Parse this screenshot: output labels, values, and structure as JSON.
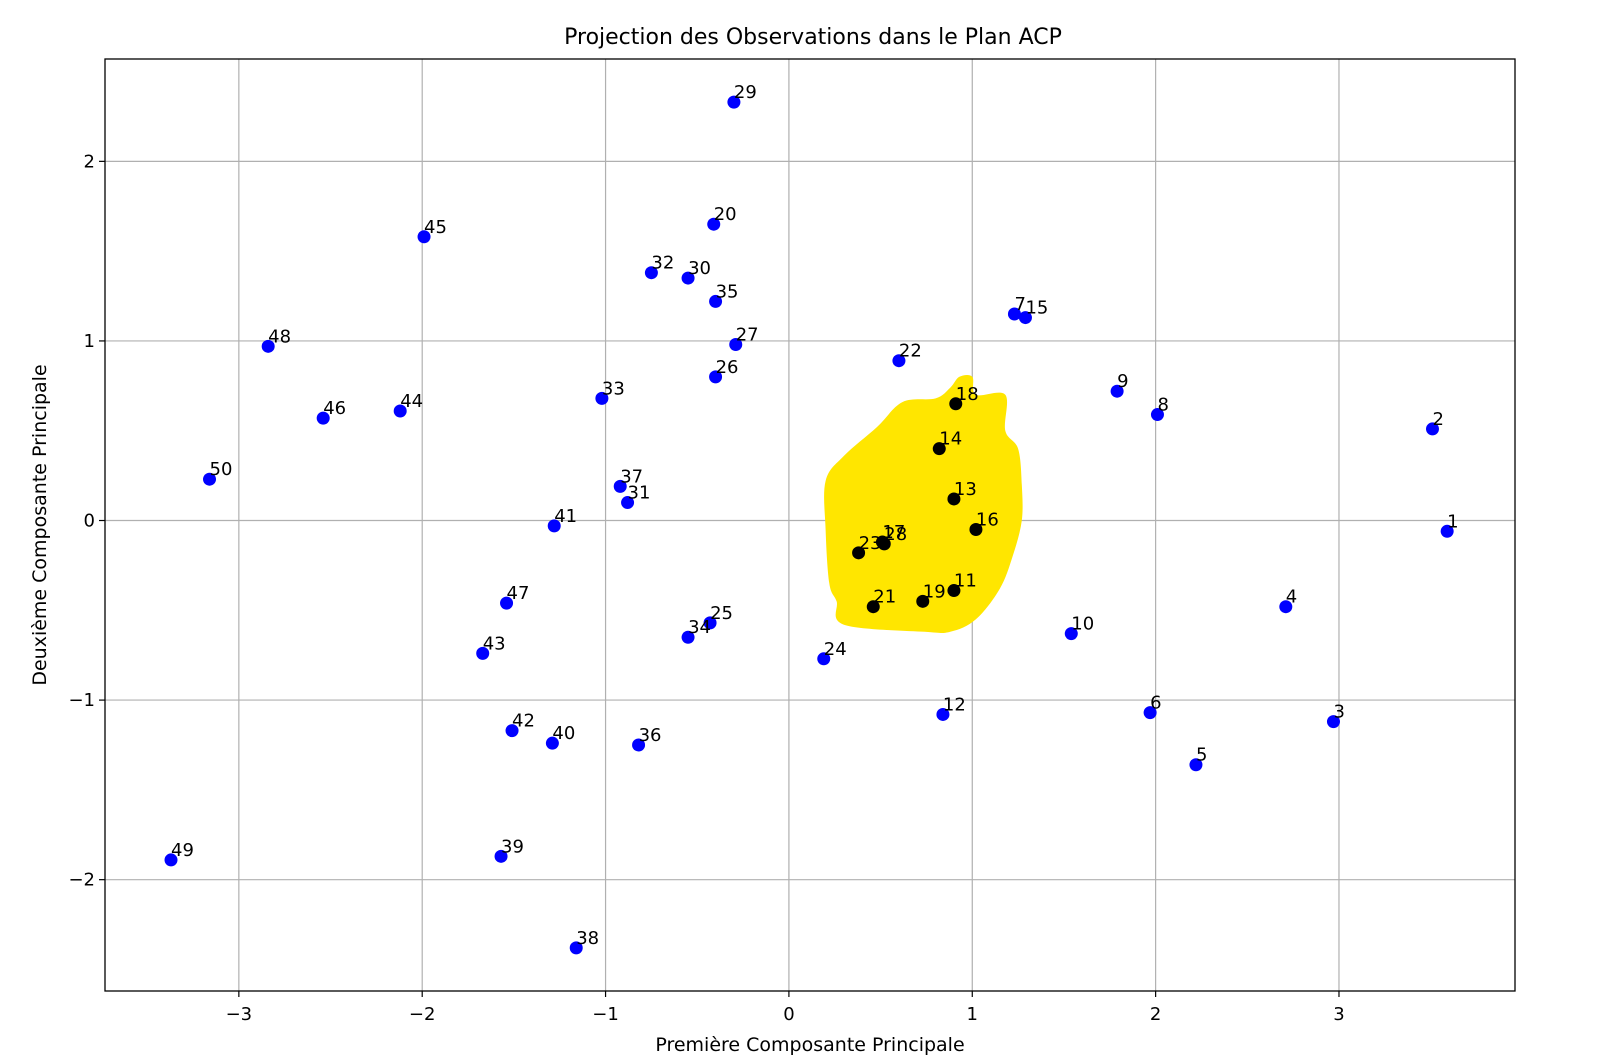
{
  "chart_data": {
    "type": "scatter",
    "title": "Projection des Observations dans le Plan ACP",
    "xlabel": "Première Composante Principale",
    "ylabel": "Deuxième Composante Principale",
    "xlim": [
      -3.73,
      3.96
    ],
    "ylim": [
      -2.62,
      2.57
    ],
    "xticks": [
      -3,
      -2,
      -1,
      0,
      1,
      2,
      3
    ],
    "yticks": [
      -2,
      -1,
      0,
      1,
      2
    ],
    "tick_labels_x": [
      "−3",
      "−2",
      "−1",
      "0",
      "1",
      "2",
      "3"
    ],
    "tick_labels_y": [
      "−2",
      "−1",
      "0",
      "1",
      "2"
    ],
    "grid": true,
    "colors": {
      "default": "#0000ff",
      "highlight": "#000000",
      "marker": "#ffe600"
    },
    "points": [
      {
        "label": "1",
        "x": 3.59,
        "y": -0.06,
        "color": "#0000ff"
      },
      {
        "label": "2",
        "x": 3.51,
        "y": 0.51,
        "color": "#0000ff"
      },
      {
        "label": "3",
        "x": 2.97,
        "y": -1.12,
        "color": "#0000ff"
      },
      {
        "label": "4",
        "x": 2.71,
        "y": -0.48,
        "color": "#0000ff"
      },
      {
        "label": "5",
        "x": 2.22,
        "y": -1.36,
        "color": "#0000ff"
      },
      {
        "label": "6",
        "x": 1.97,
        "y": -1.07,
        "color": "#0000ff"
      },
      {
        "label": "7",
        "x": 1.23,
        "y": 1.15,
        "color": "#0000ff"
      },
      {
        "label": "8",
        "x": 2.01,
        "y": 0.59,
        "color": "#0000ff"
      },
      {
        "label": "9",
        "x": 1.79,
        "y": 0.72,
        "color": "#0000ff"
      },
      {
        "label": "10",
        "x": 1.54,
        "y": -0.63,
        "color": "#0000ff"
      },
      {
        "label": "11",
        "x": 0.9,
        "y": -0.39,
        "color": "#000000"
      },
      {
        "label": "12",
        "x": 0.84,
        "y": -1.08,
        "color": "#0000ff"
      },
      {
        "label": "13",
        "x": 0.9,
        "y": 0.12,
        "color": "#000000"
      },
      {
        "label": "14",
        "x": 0.82,
        "y": 0.4,
        "color": "#000000"
      },
      {
        "label": "15",
        "x": 1.29,
        "y": 1.13,
        "color": "#0000ff"
      },
      {
        "label": "16",
        "x": 1.02,
        "y": -0.05,
        "color": "#000000"
      },
      {
        "label": "17",
        "x": 0.51,
        "y": -0.12,
        "color": "#000000"
      },
      {
        "label": "18",
        "x": 0.91,
        "y": 0.65,
        "color": "#000000"
      },
      {
        "label": "19",
        "x": 0.73,
        "y": -0.45,
        "color": "#000000"
      },
      {
        "label": "20",
        "x": -0.41,
        "y": 1.65,
        "color": "#0000ff"
      },
      {
        "label": "21",
        "x": 0.46,
        "y": -0.48,
        "color": "#000000"
      },
      {
        "label": "22",
        "x": 0.6,
        "y": 0.89,
        "color": "#0000ff"
      },
      {
        "label": "23",
        "x": 0.38,
        "y": -0.18,
        "color": "#000000"
      },
      {
        "label": "24",
        "x": 0.19,
        "y": -0.77,
        "color": "#0000ff"
      },
      {
        "label": "25",
        "x": -0.43,
        "y": -0.57,
        "color": "#0000ff"
      },
      {
        "label": "26",
        "x": -0.4,
        "y": 0.8,
        "color": "#0000ff"
      },
      {
        "label": "27",
        "x": -0.29,
        "y": 0.98,
        "color": "#0000ff"
      },
      {
        "label": "28",
        "x": 0.52,
        "y": -0.13,
        "color": "#000000"
      },
      {
        "label": "29",
        "x": -0.3,
        "y": 2.33,
        "color": "#0000ff"
      },
      {
        "label": "30",
        "x": -0.55,
        "y": 1.35,
        "color": "#0000ff"
      },
      {
        "label": "31",
        "x": -0.88,
        "y": 0.1,
        "color": "#0000ff"
      },
      {
        "label": "32",
        "x": -0.75,
        "y": 1.38,
        "color": "#0000ff"
      },
      {
        "label": "33",
        "x": -1.02,
        "y": 0.68,
        "color": "#0000ff"
      },
      {
        "label": "34",
        "x": -0.55,
        "y": -0.65,
        "color": "#0000ff"
      },
      {
        "label": "35",
        "x": -0.4,
        "y": 1.22,
        "color": "#0000ff"
      },
      {
        "label": "36",
        "x": -0.82,
        "y": -1.25,
        "color": "#0000ff"
      },
      {
        "label": "37",
        "x": -0.92,
        "y": 0.19,
        "color": "#0000ff"
      },
      {
        "label": "38",
        "x": -1.16,
        "y": -2.38,
        "color": "#0000ff"
      },
      {
        "label": "39",
        "x": -1.57,
        "y": -1.87,
        "color": "#0000ff"
      },
      {
        "label": "40",
        "x": -1.29,
        "y": -1.24,
        "color": "#0000ff"
      },
      {
        "label": "41",
        "x": -1.28,
        "y": -0.03,
        "color": "#0000ff"
      },
      {
        "label": "42",
        "x": -1.51,
        "y": -1.17,
        "color": "#0000ff"
      },
      {
        "label": "43",
        "x": -1.67,
        "y": -0.74,
        "color": "#0000ff"
      },
      {
        "label": "44",
        "x": -2.12,
        "y": 0.61,
        "color": "#0000ff"
      },
      {
        "label": "45",
        "x": -1.99,
        "y": 1.58,
        "color": "#0000ff"
      },
      {
        "label": "46",
        "x": -2.54,
        "y": 0.57,
        "color": "#0000ff"
      },
      {
        "label": "47",
        "x": -1.54,
        "y": -0.46,
        "color": "#0000ff"
      },
      {
        "label": "48",
        "x": -2.84,
        "y": 0.97,
        "color": "#0000ff"
      },
      {
        "label": "49",
        "x": -3.37,
        "y": -1.89,
        "color": "#0000ff"
      },
      {
        "label": "50",
        "x": -3.16,
        "y": 0.23,
        "color": "#0000ff"
      }
    ]
  }
}
